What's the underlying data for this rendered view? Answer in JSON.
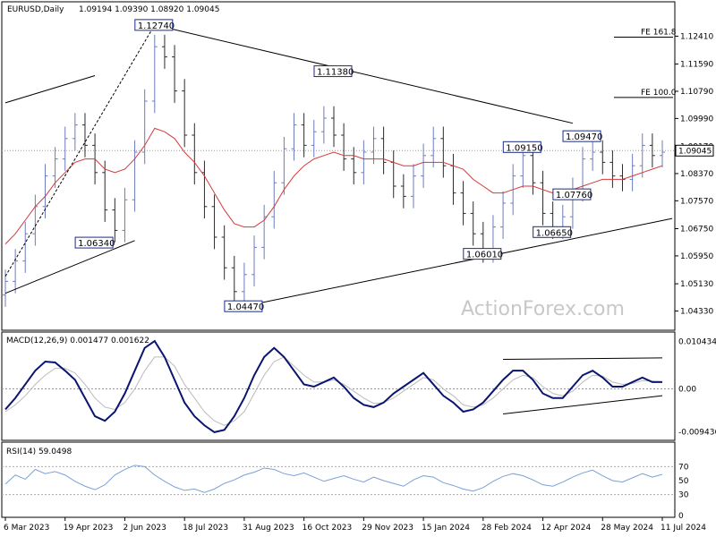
{
  "header": {
    "symbol": "EURUSD,Daily",
    "ohlc": "1.09194 1.09390 1.08920 1.09045"
  },
  "watermark": "ActionForex.com",
  "colors": {
    "bull": "#6c7bbd",
    "bear": "#2a2a2a",
    "ma": "#d43a3a",
    "macd": "#0a1570",
    "signal": "#bbbbbb",
    "rsi": "#7aa0d8",
    "trendline": "#000000"
  },
  "chart_data": [
    {
      "type": "candlestick",
      "title": "EURUSD,Daily",
      "ylim": [
        1.04,
        1.13
      ],
      "price_ticks": [
        "1.12410",
        "1.11590",
        "1.10790",
        "1.09990",
        "1.09170",
        "1.08370",
        "1.07570",
        "1.06750",
        "1.05950",
        "1.05130",
        "1.04330"
      ],
      "price_tick_values": [
        1.1241,
        1.1159,
        1.1079,
        1.0999,
        1.0917,
        1.0837,
        1.0757,
        1.0675,
        1.0595,
        1.0513,
        1.0433
      ],
      "last_price": "1.09045",
      "last_price_value": 1.09045,
      "x_ticks": [
        "6 Mar 2023",
        "19 Apr 2023",
        "2 Jun 2023",
        "18 Jul 2023",
        "31 Aug 2023",
        "16 Oct 2023",
        "29 Nov 2023",
        "15 Jan 2024",
        "28 Feb 2024",
        "12 Apr 2024",
        "28 May 2024",
        "11 Jul 2024"
      ],
      "fib_levels": [
        {
          "label": "FE 161.8",
          "value": 1.1238
        },
        {
          "label": "FE 100.0",
          "value": 1.1061
        }
      ],
      "price_labels": [
        {
          "text": "1.12740",
          "value": 1.1274
        },
        {
          "text": "1.11380",
          "value": 1.1138
        },
        {
          "text": "1.06340",
          "value": 1.0634
        },
        {
          "text": "1.04470",
          "value": 1.0447
        },
        {
          "text": "1.09150",
          "value": 1.0915
        },
        {
          "text": "1.09470",
          "value": 1.0947
        },
        {
          "text": "1.07760",
          "value": 1.0776
        },
        {
          "text": "1.06650",
          "value": 1.0665
        },
        {
          "text": "1.06010",
          "value": 1.0601
        }
      ],
      "series": [
        {
          "name": "close",
          "values": [
            1.052,
            1.058,
            1.066,
            1.074,
            1.083,
            1.088,
            1.094,
            1.098,
            1.092,
            1.084,
            1.073,
            1.067,
            1.076,
            1.09,
            1.105,
            1.121,
            1.118,
            1.108,
            1.095,
            1.084,
            1.074,
            1.065,
            1.056,
            1.049,
            1.054,
            1.062,
            1.071,
            1.081,
            1.091,
            1.098,
            1.092,
            1.096,
            1.1,
            1.095,
            1.088,
            1.084,
            1.09,
            1.094,
            1.087,
            1.08,
            1.077,
            1.083,
            1.089,
            1.094,
            1.086,
            1.078,
            1.072,
            1.066,
            1.061,
            1.068,
            1.075,
            1.083,
            1.089,
            1.081,
            1.072,
            1.068,
            1.071,
            1.079,
            1.088,
            1.09,
            1.087,
            1.083,
            1.082,
            1.086,
            1.092,
            1.089,
            1.09
          ]
        },
        {
          "name": "MA",
          "values": [
            1.063,
            1.066,
            1.07,
            1.074,
            1.077,
            1.081,
            1.084,
            1.087,
            1.088,
            1.088,
            1.085,
            1.084,
            1.085,
            1.088,
            1.092,
            1.097,
            1.096,
            1.094,
            1.09,
            1.087,
            1.083,
            1.078,
            1.073,
            1.069,
            1.068,
            1.068,
            1.07,
            1.074,
            1.079,
            1.083,
            1.086,
            1.088,
            1.089,
            1.09,
            1.089,
            1.089,
            1.088,
            1.088,
            1.088,
            1.087,
            1.086,
            1.086,
            1.087,
            1.087,
            1.087,
            1.086,
            1.085,
            1.082,
            1.08,
            1.078,
            1.078,
            1.079,
            1.08,
            1.08,
            1.079,
            1.078,
            1.078,
            1.079,
            1.08,
            1.081,
            1.082,
            1.082,
            1.082,
            1.083,
            1.084,
            1.085,
            1.086
          ]
        }
      ]
    },
    {
      "type": "line",
      "title": "MACD(12,26,9) 0.001477 0.001622",
      "y_ticks": [
        "0.010434",
        "0.00",
        "-0.009436"
      ],
      "y_tick_values": [
        0.010434,
        0.0,
        -0.009436
      ],
      "ylim": [
        -0.0105,
        0.0115
      ],
      "series": [
        {
          "name": "MACD",
          "values": [
            -0.0045,
            -0.002,
            0.001,
            0.004,
            0.006,
            0.0058,
            0.004,
            0.002,
            -0.002,
            -0.006,
            -0.007,
            -0.005,
            -0.001,
            0.004,
            0.009,
            0.0105,
            0.007,
            0.002,
            -0.003,
            -0.006,
            -0.008,
            -0.0095,
            -0.009,
            -0.006,
            -0.002,
            0.003,
            0.007,
            0.009,
            0.007,
            0.004,
            0.001,
            0.0005,
            0.0015,
            0.0025,
            0.0005,
            -0.002,
            -0.0035,
            -0.004,
            -0.003,
            -0.001,
            0.0005,
            0.002,
            0.0035,
            0.001,
            -0.0015,
            -0.003,
            -0.005,
            -0.0045,
            -0.003,
            -0.0005,
            0.002,
            0.004,
            0.004,
            0.002,
            -0.001,
            -0.002,
            -0.002,
            0.0005,
            0.003,
            0.004,
            0.0025,
            0.0005,
            0.0005,
            0.0015,
            0.0025,
            0.0015,
            0.0015
          ]
        },
        {
          "name": "Signal",
          "values": [
            -0.005,
            -0.0035,
            -0.0015,
            0.001,
            0.003,
            0.0045,
            0.0045,
            0.0035,
            0.001,
            -0.002,
            -0.004,
            -0.0045,
            -0.003,
            0.0,
            0.004,
            0.007,
            0.007,
            0.005,
            0.001,
            -0.002,
            -0.005,
            -0.007,
            -0.008,
            -0.007,
            -0.005,
            -0.001,
            0.003,
            0.006,
            0.007,
            0.005,
            0.003,
            0.0015,
            0.0015,
            0.002,
            0.001,
            -0.0005,
            -0.002,
            -0.0032,
            -0.003,
            -0.002,
            -0.0005,
            0.001,
            0.0025,
            0.002,
            0.0,
            -0.0015,
            -0.0035,
            -0.004,
            -0.0035,
            -0.002,
            0.0,
            0.002,
            0.003,
            0.0025,
            0.0005,
            -0.001,
            -0.0015,
            -0.0005,
            0.0015,
            0.003,
            0.0028,
            0.0015,
            0.001,
            0.0012,
            0.0018,
            0.0017,
            0.0016
          ]
        }
      ]
    },
    {
      "type": "line",
      "title": "RSI(14) 59.0498",
      "y_ticks": [
        "70",
        "50",
        "30",
        "0"
      ],
      "y_tick_values": [
        70,
        50,
        30,
        0
      ],
      "ylim": [
        0,
        100
      ],
      "series": [
        {
          "name": "RSI",
          "values": [
            45,
            58,
            52,
            66,
            60,
            63,
            58,
            49,
            42,
            37,
            44,
            58,
            66,
            72,
            70,
            58,
            49,
            41,
            36,
            38,
            33,
            38,
            46,
            51,
            58,
            62,
            68,
            66,
            60,
            57,
            61,
            55,
            49,
            53,
            57,
            52,
            48,
            55,
            50,
            46,
            42,
            51,
            57,
            55,
            47,
            43,
            38,
            35,
            40,
            49,
            56,
            60,
            57,
            51,
            44,
            42,
            48,
            55,
            61,
            65,
            57,
            50,
            48,
            54,
            60,
            55,
            59
          ]
        }
      ]
    }
  ]
}
